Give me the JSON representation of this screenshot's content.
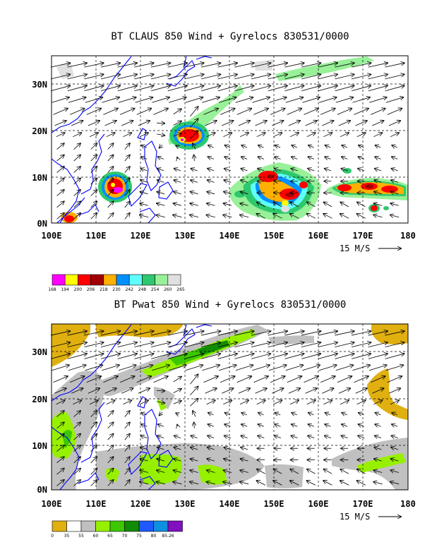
{
  "panels": [
    {
      "title": "BT CLAUS 850 Wind + Gyrelocs 830531/0000",
      "colorbar": {
        "labels": [
          "168",
          "194",
          "200",
          "206",
          "218",
          "230",
          "242",
          "248",
          "254",
          "260",
          "265"
        ],
        "colors": [
          "#ff00ff",
          "#ffff00",
          "#ff0000",
          "#a00000",
          "#ffb000",
          "#0090ff",
          "#60ffff",
          "#2ec86e",
          "#98f098",
          "#e0e0e0"
        ]
      },
      "vector_reference": {
        "label": "15 M/S",
        "speed": 15
      }
    },
    {
      "title": "BT Pwat 850 Wind + Gyrelocs 830531/0000",
      "colorbar": {
        "labels": [
          "0",
          "35",
          "55",
          "60",
          "65",
          "70",
          "75",
          "80",
          "85.26"
        ],
        "colors": [
          "#e0b010",
          "#ffffff",
          "#c0c0c0",
          "#96f000",
          "#3cc800",
          "#108c00",
          "#1e5aff",
          "#1090e0",
          "#8010c0"
        ]
      },
      "vector_reference": {
        "label": "15 M/S",
        "speed": 15
      }
    }
  ],
  "chart_data": [
    {
      "type": "heatmap",
      "title": "BT CLAUS 850 Wind + Gyrelocs 830531/0000",
      "x_ticks": [
        "100E",
        "110E",
        "120E",
        "130E",
        "140E",
        "150E",
        "160E",
        "170E",
        "180"
      ],
      "y_ticks": [
        "0N",
        "10N",
        "20N",
        "30N"
      ],
      "xlim": [
        100,
        180
      ],
      "ylim": [
        0,
        36
      ],
      "grid": true,
      "legend": "colorbar below",
      "colorbar_levels": [
        168,
        194,
        200,
        206,
        218,
        230,
        242,
        248,
        254,
        260,
        265
      ],
      "overlay": "850 hPa wind vectors",
      "features": [
        {
          "name": "cold cloud cluster",
          "lon": 115,
          "lat": 8
        },
        {
          "name": "cold cloud cluster",
          "lon": 129.5,
          "lat": 18.5
        },
        {
          "name": "cold cloud cluster",
          "lon": 152,
          "lat": 7
        },
        {
          "name": "cold cloud band",
          "lon": 171,
          "lat": 7
        },
        {
          "name": "cold cloud cluster",
          "lon": 168,
          "lat": 3
        }
      ]
    },
    {
      "type": "heatmap",
      "title": "BT Pwat 850 Wind + Gyrelocs 830531/0000",
      "x_ticks": [
        "100E",
        "110E",
        "120E",
        "130E",
        "140E",
        "150E",
        "160E",
        "170E",
        "180"
      ],
      "y_ticks": [
        "0N",
        "10N",
        "20N",
        "30N"
      ],
      "xlim": [
        100,
        180
      ],
      "ylim": [
        0,
        36
      ],
      "grid": true,
      "legend": "colorbar below",
      "colorbar_levels": [
        0,
        35,
        55,
        60,
        65,
        70,
        75,
        80,
        85.26
      ],
      "overlay": "850 hPa wind vectors"
    }
  ]
}
